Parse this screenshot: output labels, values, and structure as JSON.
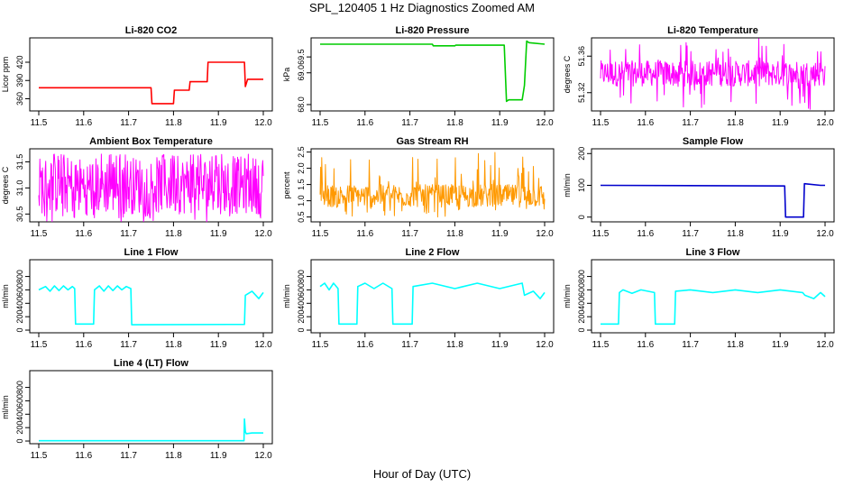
{
  "figure": {
    "title": "SPL_120405 1 Hz Diagnostics Zoomed AM",
    "xlabel": "Hour of Day (UTC)"
  },
  "chart_data": [
    {
      "type": "line",
      "title": "Li-820 CO2",
      "ylabel": "Licor ppm",
      "color": "#ff0000",
      "xlim": [
        11.5,
        12.0
      ],
      "ylim": [
        340,
        460
      ],
      "xticks": [
        "11.5",
        "11.6",
        "11.7",
        "11.8",
        "11.9",
        "12.0"
      ],
      "yticks": [
        360,
        390,
        420
      ],
      "x": [
        11.5,
        11.75,
        11.752,
        11.8,
        11.802,
        11.835,
        11.837,
        11.875,
        11.877,
        11.958,
        11.96,
        11.965,
        11.97,
        12.0
      ],
      "y": [
        378,
        378,
        352,
        352,
        374,
        374,
        388,
        388,
        420,
        420,
        380,
        392,
        392,
        392
      ]
    },
    {
      "type": "line",
      "title": "Li-820 Pressure",
      "ylabel": "kPa",
      "color": "#00cc00",
      "xlim": [
        11.5,
        12.0
      ],
      "ylim": [
        67.8,
        70.1
      ],
      "xticks": [
        "11.5",
        "11.6",
        "11.7",
        "11.8",
        "11.9",
        "12.0"
      ],
      "yticks": [
        "68.0",
        "69.0",
        "69.5"
      ],
      "x": [
        11.5,
        11.75,
        11.752,
        11.8,
        11.802,
        11.91,
        11.915,
        11.92,
        11.95,
        11.955,
        11.96,
        11.965,
        12.0
      ],
      "y": [
        69.9,
        69.9,
        69.85,
        69.85,
        69.87,
        69.87,
        68.1,
        68.15,
        68.15,
        68.6,
        70.0,
        69.95,
        69.9
      ]
    },
    {
      "type": "line",
      "title": "Li-820 Temperature",
      "ylabel": "degrees C",
      "color": "#ff00ff",
      "xlim": [
        11.5,
        12.0
      ],
      "ylim": [
        51.3,
        51.38
      ],
      "xticks": [
        "11.5",
        "11.6",
        "11.7",
        "11.8",
        "11.9",
        "12.0"
      ],
      "yticks": [
        "51.32",
        "51.36"
      ],
      "x": [
        11.5,
        12.0
      ],
      "y": [
        51.34,
        51.34
      ],
      "noise": {
        "min": 51.327,
        "max": 51.355,
        "spike_min": 51.3,
        "spike_max": 51.38
      }
    },
    {
      "type": "line",
      "title": "Ambient Box Temperature",
      "ylabel": "degrees C",
      "color": "#ff00ff",
      "xlim": [
        11.5,
        12.0
      ],
      "ylim": [
        30.35,
        31.75
      ],
      "xticks": [
        "11.5",
        "11.6",
        "11.7",
        "11.8",
        "11.9",
        "12.0"
      ],
      "yticks": [
        "30.5",
        "31.0",
        "31.5"
      ],
      "x": [
        11.5,
        12.0
      ],
      "y": [
        30.9,
        30.9
      ],
      "noise": {
        "min": 30.5,
        "max": 31.6,
        "spike_min": 30.35,
        "spike_max": 31.65
      }
    },
    {
      "type": "line",
      "title": "Gas Stream RH",
      "ylabel": "percent",
      "color": "#ff9900",
      "xlim": [
        11.5,
        12.0
      ],
      "ylim": [
        0.35,
        2.6
      ],
      "xticks": [
        "11.5",
        "11.6",
        "11.7",
        "11.8",
        "11.9",
        "12.0"
      ],
      "yticks": [
        "0.5",
        "1.0",
        "1.5",
        "2.0",
        "2.5"
      ],
      "x": [
        11.5,
        12.0
      ],
      "y": [
        1.15,
        1.15
      ],
      "noise": {
        "min": 0.8,
        "max": 1.5,
        "spike_min": 0.5,
        "spike_max": 2.5
      }
    },
    {
      "type": "line",
      "title": "Sample Flow",
      "ylabel": "ml/min",
      "color": "#0000cc",
      "xlim": [
        11.5,
        12.0
      ],
      "ylim": [
        -15,
        215
      ],
      "xticks": [
        "11.5",
        "11.6",
        "11.7",
        "11.8",
        "11.9",
        "12.0"
      ],
      "yticks": [
        0,
        100,
        200
      ],
      "x": [
        11.5,
        11.91,
        11.912,
        11.952,
        11.954,
        11.99,
        12.0
      ],
      "y": [
        100,
        98,
        0,
        0,
        105,
        100,
        100
      ]
    },
    {
      "type": "line",
      "title": "Line 1 Flow",
      "ylabel": "ml/min",
      "color": "#00ffff",
      "xlim": [
        11.5,
        12.0
      ],
      "ylim": [
        -40,
        1050
      ],
      "xticks": [
        "11.5",
        "11.6",
        "11.7",
        "11.8",
        "11.9",
        "12.0"
      ],
      "yticks": [
        0,
        200,
        400,
        600,
        800
      ],
      "x": [
        11.5,
        11.515,
        11.525,
        11.535,
        11.545,
        11.555,
        11.565,
        11.575,
        11.58,
        11.582,
        11.622,
        11.624,
        11.635,
        11.645,
        11.655,
        11.665,
        11.675,
        11.685,
        11.695,
        11.705,
        11.707,
        11.958,
        11.96,
        11.975,
        11.99,
        12.0
      ],
      "y": [
        600,
        650,
        580,
        660,
        590,
        660,
        600,
        650,
        620,
        90,
        90,
        600,
        660,
        580,
        660,
        590,
        660,
        600,
        650,
        620,
        80,
        85,
        520,
        580,
        470,
        560
      ]
    },
    {
      "type": "line",
      "title": "Line 2 Flow",
      "ylabel": "ml/min",
      "color": "#00ffff",
      "xlim": [
        11.5,
        12.0
      ],
      "ylim": [
        -40,
        1050
      ],
      "xticks": [
        "11.5",
        "11.6",
        "11.7",
        "11.8",
        "11.9",
        "12.0"
      ],
      "yticks": [
        0,
        200,
        400,
        600,
        800
      ],
      "x": [
        11.5,
        11.51,
        11.52,
        11.53,
        11.54,
        11.542,
        11.582,
        11.584,
        11.6,
        11.62,
        11.64,
        11.66,
        11.662,
        11.705,
        11.707,
        11.75,
        11.8,
        11.85,
        11.9,
        11.95,
        11.955,
        11.975,
        11.99,
        12.0
      ],
      "y": [
        650,
        700,
        600,
        700,
        620,
        90,
        90,
        650,
        700,
        620,
        700,
        620,
        90,
        90,
        650,
        700,
        620,
        700,
        620,
        700,
        520,
        580,
        470,
        560
      ]
    },
    {
      "type": "line",
      "title": "Line 3 Flow",
      "ylabel": "ml/min",
      "color": "#00ffff",
      "xlim": [
        11.5,
        12.0
      ],
      "ylim": [
        -40,
        1050
      ],
      "xticks": [
        "11.5",
        "11.6",
        "11.7",
        "11.8",
        "11.9",
        "12.0"
      ],
      "yticks": [
        0,
        200,
        400,
        600,
        800
      ],
      "x": [
        11.5,
        11.54,
        11.542,
        11.55,
        11.57,
        11.59,
        11.62,
        11.622,
        11.665,
        11.667,
        11.7,
        11.75,
        11.8,
        11.85,
        11.9,
        11.95,
        11.955,
        11.975,
        11.99,
        12.0
      ],
      "y": [
        90,
        90,
        560,
        600,
        550,
        600,
        560,
        90,
        90,
        580,
        600,
        560,
        600,
        560,
        600,
        560,
        520,
        470,
        560,
        500
      ]
    },
    {
      "type": "line",
      "title": "Line 4 (LT) Flow",
      "ylabel": "ml/min",
      "color": "#00ffff",
      "xlim": [
        11.5,
        12.0
      ],
      "ylim": [
        -40,
        1050
      ],
      "xticks": [
        "11.5",
        "11.6",
        "11.7",
        "11.8",
        "11.9",
        "12.0"
      ],
      "yticks": [
        0,
        200,
        400,
        600,
        800
      ],
      "x": [
        11.5,
        11.957,
        11.958,
        11.96,
        11.962,
        11.975,
        12.0
      ],
      "y": [
        5,
        5,
        330,
        140,
        110,
        120,
        120
      ]
    }
  ]
}
